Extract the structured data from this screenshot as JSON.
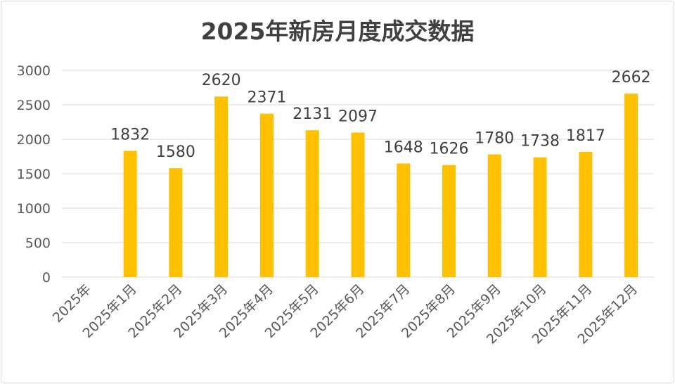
{
  "chart_data": {
    "type": "bar",
    "title": "2025年新房月度成交数据",
    "xlabel": "",
    "ylabel": "",
    "ylim": [
      0,
      3000
    ],
    "yticks": [
      0,
      500,
      1000,
      1500,
      2000,
      2500,
      3000
    ],
    "grid": true,
    "bar_color": "#FFC000",
    "categories": [
      "2025年",
      "2025年1月",
      "2025年2月",
      "2025年3月",
      "2025年4月",
      "2025年5月",
      "2025年6月",
      "2025年7月",
      "2025年8月",
      "2025年9月",
      "2025年10月",
      "2025年11月",
      "2025年12月"
    ],
    "values": [
      null,
      1832,
      1580,
      2620,
      2371,
      2131,
      2097,
      1648,
      1626,
      1780,
      1738,
      1817,
      2662
    ]
  }
}
